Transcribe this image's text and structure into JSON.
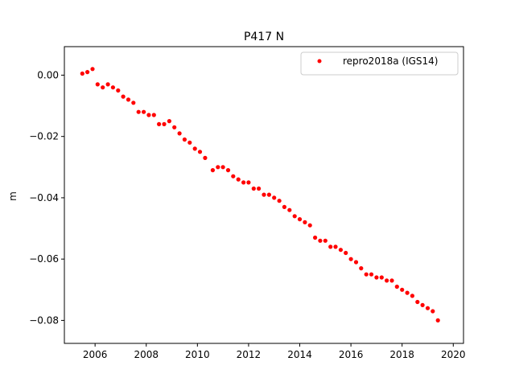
{
  "chart_data": {
    "type": "scatter",
    "title": "P417 N",
    "xlabel": "",
    "ylabel": "m",
    "xlim": [
      2004.8,
      2020.4
    ],
    "ylim": [
      -0.0875,
      0.0093
    ],
    "x_ticks": [
      2006,
      2008,
      2010,
      2012,
      2014,
      2016,
      2018,
      2020
    ],
    "y_ticks": [
      0.0,
      -0.02,
      -0.04,
      -0.06,
      -0.08
    ],
    "y_tick_labels": [
      "0.00",
      "−0.02",
      "−0.04",
      "−0.06",
      "−0.08"
    ],
    "grid": false,
    "legend": {
      "position": "top-right"
    },
    "series": [
      {
        "name": "repro2018a (IGS14)",
        "color": "#ff0000",
        "marker": "circle",
        "x": [
          2005.5,
          2005.7,
          2005.9,
          2006.1,
          2006.3,
          2006.5,
          2006.7,
          2006.9,
          2007.1,
          2007.3,
          2007.5,
          2007.7,
          2007.9,
          2008.1,
          2008.3,
          2008.5,
          2008.7,
          2008.9,
          2009.1,
          2009.3,
          2009.5,
          2009.7,
          2009.9,
          2010.1,
          2010.3,
          2010.6,
          2010.8,
          2011.0,
          2011.2,
          2011.4,
          2011.6,
          2011.8,
          2012.0,
          2012.2,
          2012.4,
          2012.6,
          2012.8,
          2013.0,
          2013.2,
          2013.4,
          2013.6,
          2013.8,
          2014.0,
          2014.2,
          2014.4,
          2014.6,
          2014.8,
          2015.0,
          2015.2,
          2015.4,
          2015.6,
          2015.8,
          2016.0,
          2016.2,
          2016.4,
          2016.6,
          2016.8,
          2017.0,
          2017.2,
          2017.4,
          2017.6,
          2017.8,
          2018.0,
          2018.2,
          2018.4,
          2018.6,
          2018.8,
          2019.0,
          2019.2,
          2019.4
        ],
        "y": [
          0.0005,
          0.001,
          0.002,
          -0.003,
          -0.004,
          -0.003,
          -0.004,
          -0.005,
          -0.007,
          -0.008,
          -0.009,
          -0.012,
          -0.012,
          -0.013,
          -0.013,
          -0.016,
          -0.016,
          -0.015,
          -0.017,
          -0.019,
          -0.021,
          -0.022,
          -0.024,
          -0.025,
          -0.027,
          -0.031,
          -0.03,
          -0.03,
          -0.031,
          -0.033,
          -0.034,
          -0.035,
          -0.035,
          -0.037,
          -0.037,
          -0.039,
          -0.039,
          -0.04,
          -0.041,
          -0.043,
          -0.044,
          -0.046,
          -0.047,
          -0.048,
          -0.049,
          -0.053,
          -0.054,
          -0.054,
          -0.056,
          -0.056,
          -0.057,
          -0.058,
          -0.06,
          -0.061,
          -0.063,
          -0.065,
          -0.065,
          -0.066,
          -0.066,
          -0.067,
          -0.067,
          -0.069,
          -0.07,
          -0.071,
          -0.072,
          -0.074,
          -0.075,
          -0.076,
          -0.077,
          -0.08
        ]
      }
    ]
  }
}
